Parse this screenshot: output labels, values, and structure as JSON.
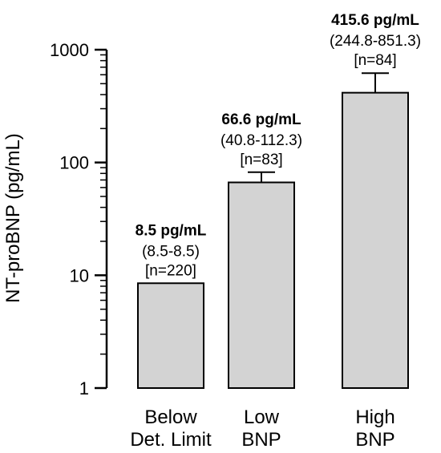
{
  "chart_data": {
    "type": "bar",
    "ylabel": "NT-proBNP (pg/mL)",
    "yscale": "log",
    "ylim": [
      1,
      1000
    ],
    "yticks": [
      "1",
      "10",
      "100",
      "1000"
    ],
    "ytick_values": [
      1,
      10,
      100,
      1000
    ],
    "categories": [
      [
        "Below",
        "Det. Limit"
      ],
      [
        "Low",
        "BNP"
      ],
      [
        "High",
        "BNP"
      ]
    ],
    "values": [
      8.5,
      66.6,
      415.6
    ],
    "error_upper": [
      8.5,
      82,
      620
    ],
    "annotations": [
      {
        "median": "8.5 pg/mL",
        "range": "(8.5-8.5)",
        "n": "[n=220]"
      },
      {
        "median": "66.6 pg/mL",
        "range": "(40.8-112.3)",
        "n": "[n=83]"
      },
      {
        "median": "415.6 pg/mL",
        "range": "(244.8-851.3)",
        "n": "[n=84]"
      }
    ],
    "bar_color": "#d3d3d3",
    "edge_color": "#000000",
    "grid": false,
    "legend": "none"
  }
}
